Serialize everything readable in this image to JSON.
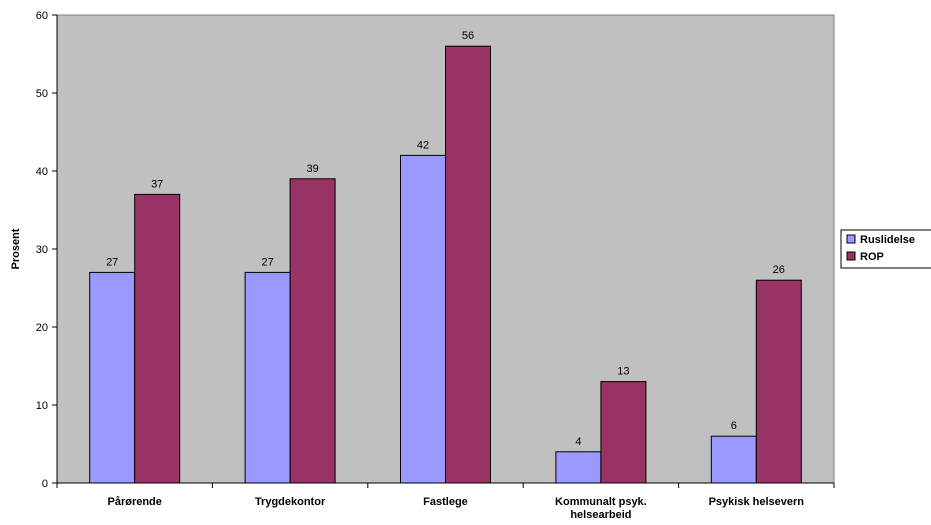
{
  "chart_data": {
    "type": "bar",
    "title": "",
    "xlabel": "",
    "ylabel": "Prosent",
    "ylim": [
      0,
      60
    ],
    "yticks": [
      0,
      10,
      20,
      30,
      40,
      50,
      60
    ],
    "grid": false,
    "legend_position": "right",
    "categories": [
      [
        "Pårørende"
      ],
      [
        "Trygdekontor"
      ],
      [
        "Fastlege"
      ],
      [
        "Kommunalt psyk.",
        "helsearbeid"
      ],
      [
        "Psykisk helsevern"
      ]
    ],
    "series": [
      {
        "name": "Ruslidelse",
        "color": "#9999ff",
        "values": [
          27,
          27,
          42,
          4,
          6
        ]
      },
      {
        "name": "ROP",
        "color": "#993366",
        "values": [
          37,
          39,
          56,
          13,
          26
        ]
      }
    ],
    "plot_background": "#c0c0c0"
  }
}
